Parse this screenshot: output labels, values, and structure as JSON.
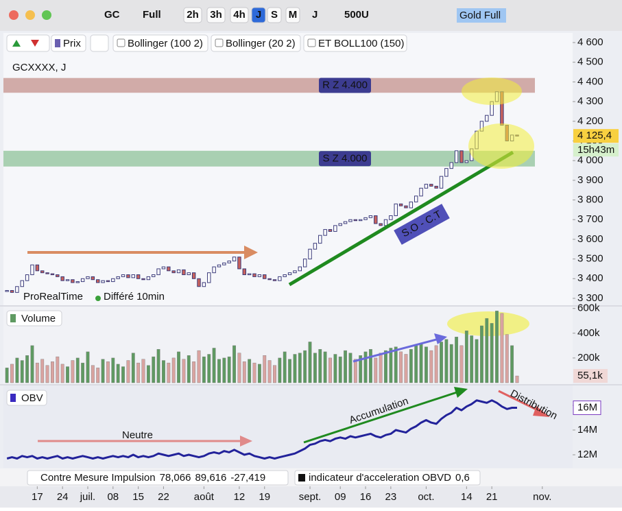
{
  "toolbar": {
    "symbol": "GC",
    "range": "Full",
    "timeframes": [
      "2h",
      "3h",
      "4h",
      "J",
      "S",
      "M"
    ],
    "period": "J",
    "units": "500U",
    "preset": "Gold Full"
  },
  "indicators": {
    "prix": "Prix",
    "items": [
      {
        "name": "Bollinger",
        "params": "(100 2)"
      },
      {
        "name": "Bollinger",
        "params": "(20 2)"
      },
      {
        "name": "ET BOLL100",
        "params": "(150)"
      }
    ]
  },
  "source": {
    "provider": "ProRealTime",
    "delay": "Différé 10min"
  },
  "chart_data": [
    {
      "type": "candlestick",
      "title": "GCXXXX, J",
      "close": [
        3340,
        3330,
        3360,
        3390,
        3420,
        3470,
        3440,
        3430,
        3425,
        3420,
        3410,
        3390,
        3395,
        3380,
        3385,
        3400,
        3410,
        3395,
        3380,
        3390,
        3385,
        3400,
        3410,
        3420,
        3405,
        3420,
        3400,
        3395,
        3410,
        3420,
        3450,
        3460,
        3440,
        3430,
        3445,
        3420,
        3430,
        3400,
        3360,
        3380,
        3430,
        3460,
        3470,
        3480,
        3490,
        3510,
        3450,
        3420,
        3425,
        3410,
        3420,
        3400,
        3395,
        3390,
        3410,
        3420,
        3430,
        3440,
        3460,
        3500,
        3550,
        3580,
        3620,
        3650,
        3640,
        3670,
        3680,
        3690,
        3700,
        3695,
        3700,
        3710,
        3720,
        3680,
        3670,
        3700,
        3720,
        3780,
        3770,
        3760,
        3790,
        3820,
        3860,
        3880,
        3870,
        3860,
        3920,
        3960,
        3990,
        4050,
        3990,
        4000,
        4060,
        4150,
        4200,
        4230,
        4300,
        4350,
        4180,
        4100,
        4130,
        4125.4
      ],
      "up_color": "#ffffff",
      "down_color": "#c9625c",
      "outline": "#3a3a7a",
      "xlim": [
        -0.7,
        112
      ],
      "xticks": [
        {
          "value": 6,
          "label": "17"
        },
        {
          "value": 11,
          "label": "24"
        },
        {
          "value": 16,
          "label": "juil."
        },
        {
          "value": 21,
          "label": "08"
        },
        {
          "value": 26,
          "label": "15"
        },
        {
          "value": 31,
          "label": "22"
        },
        {
          "value": 39,
          "label": "août"
        },
        {
          "value": 46,
          "label": "12"
        },
        {
          "value": 51,
          "label": "19"
        },
        {
          "value": 60,
          "label": "sept."
        },
        {
          "value": 66,
          "label": "09"
        },
        {
          "value": 71,
          "label": "16"
        },
        {
          "value": 76,
          "label": "23"
        },
        {
          "value": 83,
          "label": "oct."
        },
        {
          "value": 91,
          "label": "14"
        },
        {
          "value": 96,
          "label": "21"
        },
        {
          "value": 106,
          "label": "nov."
        }
      ],
      "ylim": [
        3265,
        4649
      ],
      "yticks": [
        {
          "value": 4600,
          "label": "4 600"
        },
        {
          "value": 4500,
          "label": "4 500"
        },
        {
          "value": 4400,
          "label": "4 400"
        },
        {
          "value": 4300,
          "label": "4 300"
        },
        {
          "value": 4200,
          "label": "4 200"
        },
        {
          "value": 4100,
          "label": "4 100"
        },
        {
          "value": 4000,
          "label": "4 000"
        },
        {
          "value": 3900,
          "label": "3 900"
        },
        {
          "value": 3800,
          "label": "3 800"
        },
        {
          "value": 3700,
          "label": "3 700"
        },
        {
          "value": 3600,
          "label": "3 600"
        },
        {
          "value": 3500,
          "label": "3 500"
        },
        {
          "value": 3400,
          "label": "3 400"
        },
        {
          "value": 3300,
          "label": "3 300"
        }
      ],
      "last_price": {
        "value": 4125.4,
        "label": "4 125,4"
      },
      "countdown": "15h43m",
      "zones": [
        {
          "label": "R Z 4.400",
          "low": 4345,
          "high": 4420,
          "color": "#c4918c"
        },
        {
          "label": "S Z 4.000",
          "low": 3970,
          "high": 4050,
          "color": "#8fc39a"
        }
      ],
      "trend_label": "S.O - C.T"
    },
    {
      "type": "bar",
      "title": "Volume",
      "values": [
        120000,
        150000,
        200000,
        180000,
        220000,
        300000,
        160000,
        190000,
        140000,
        170000,
        210000,
        150000,
        130000,
        180000,
        200000,
        160000,
        250000,
        140000,
        120000,
        190000,
        170000,
        200000,
        150000,
        130000,
        180000,
        240000,
        160000,
        190000,
        140000,
        210000,
        270000,
        180000,
        160000,
        200000,
        250000,
        190000,
        220000,
        170000,
        260000,
        210000,
        230000,
        280000,
        190000,
        200000,
        210000,
        300000,
        240000,
        170000,
        190000,
        160000,
        150000,
        220000,
        180000,
        140000,
        200000,
        250000,
        190000,
        230000,
        240000,
        260000,
        330000,
        240000,
        270000,
        250000,
        200000,
        230000,
        210000,
        260000,
        240000,
        190000,
        220000,
        250000,
        270000,
        200000,
        240000,
        260000,
        280000,
        290000,
        250000,
        230000,
        270000,
        300000,
        320000,
        290000,
        260000,
        300000,
        330000,
        350000,
        310000,
        370000,
        300000,
        420000,
        380000,
        350000,
        460000,
        520000,
        480000,
        580000,
        560000,
        390000,
        300000,
        55100
      ],
      "up_color": "#5f9a62",
      "down_color": "#d9a3a0",
      "ylim": [
        0,
        615000
      ],
      "yticks": [
        {
          "value": 200000,
          "label": "200k"
        },
        {
          "value": 400000,
          "label": "400k"
        },
        {
          "value": 600000,
          "label": "600k"
        }
      ],
      "last": {
        "value": 55100,
        "label": "55,1k"
      }
    },
    {
      "type": "line",
      "title": "OBV",
      "values": [
        11.7,
        11.8,
        11.7,
        11.9,
        11.8,
        11.9,
        11.7,
        11.8,
        11.7,
        11.8,
        11.9,
        11.7,
        11.8,
        11.7,
        11.8,
        11.9,
        11.8,
        11.7,
        11.8,
        11.7,
        11.8,
        11.9,
        11.8,
        11.9,
        11.8,
        12.0,
        11.8,
        11.9,
        11.8,
        11.9,
        12.1,
        12.0,
        11.9,
        12.0,
        12.1,
        11.9,
        12.0,
        11.9,
        11.8,
        11.9,
        12.1,
        12.2,
        12.1,
        12.3,
        12.2,
        12.4,
        12.2,
        12.0,
        12.1,
        11.9,
        11.8,
        11.7,
        11.8,
        11.7,
        11.8,
        11.9,
        12.0,
        12.1,
        12.3,
        12.5,
        12.8,
        12.9,
        13.1,
        13.2,
        13.1,
        13.3,
        13.4,
        13.3,
        13.5,
        13.4,
        13.5,
        13.6,
        13.7,
        13.5,
        13.4,
        13.6,
        13.7,
        14.0,
        13.9,
        13.8,
        14.1,
        14.3,
        14.6,
        14.8,
        14.6,
        14.5,
        14.9,
        15.2,
        15.4,
        15.8,
        15.6,
        15.9,
        16.1,
        16.4,
        16.3,
        16.2,
        16.4,
        16.2,
        15.9,
        15.7,
        15.8,
        15.8
      ],
      "color": "#22229a",
      "ylim": [
        11.06,
        17.6
      ],
      "yticks": [
        {
          "value": 12,
          "label": "12M"
        },
        {
          "value": 14,
          "label": "14M"
        },
        {
          "value": 16,
          "label": "16M"
        }
      ],
      "last": {
        "value": 15.8,
        "label": "16M"
      },
      "annotations": [
        "Neutre",
        "Accumulation",
        "Distribution"
      ]
    }
  ],
  "footer": {
    "indicator1": {
      "name": "Contre Mesure  Impulsion",
      "values": [
        {
          "value": 78.066,
          "label": "78,066"
        },
        {
          "value": 89.616,
          "label": "89,616"
        },
        {
          "value": -27.419,
          "label": "-27,419"
        }
      ]
    },
    "indicator2": {
      "name": "indicateur d'acceleration OBVD",
      "value": {
        "value": 0.6,
        "label": "0,6"
      }
    }
  }
}
